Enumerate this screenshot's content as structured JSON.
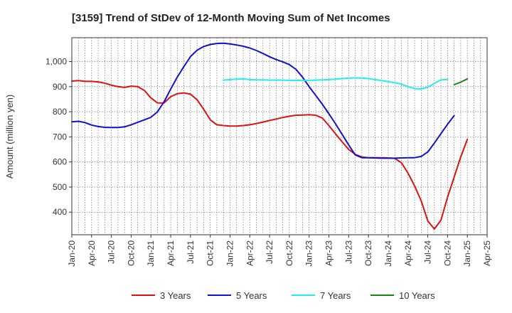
{
  "chart_data": {
    "type": "line",
    "title": "[3159]  Trend of StDev of 12-Month Moving Sum of Net Incomes",
    "xlabel": "",
    "ylabel": "Amount (million yen)",
    "ylim": [
      310,
      1095
    ],
    "yticks": [
      400,
      500,
      600,
      700,
      800,
      900,
      1000
    ],
    "ytick_labels": [
      "400",
      "500",
      "600",
      "700",
      "800",
      "900",
      "1,000"
    ],
    "x_start": "Jan-20",
    "x_end": "Apr-25",
    "xtick_labels": [
      "Jan-20",
      "Apr-20",
      "Jul-20",
      "Oct-20",
      "Jan-21",
      "Apr-21",
      "Jul-21",
      "Oct-21",
      "Jan-22",
      "Apr-22",
      "Jul-22",
      "Oct-22",
      "Jan-23",
      "Apr-23",
      "Jul-23",
      "Oct-23",
      "Jan-24",
      "Apr-24",
      "Jul-24",
      "Oct-24",
      "Jan-25",
      "Apr-25"
    ],
    "grid": true,
    "legend_position": "bottom",
    "series": [
      {
        "name": "3 Years",
        "color": "#dd1111",
        "start_month": 0,
        "values": [
          922,
          924,
          921,
          921,
          919,
          914,
          906,
          900,
          897,
          902,
          900,
          885,
          855,
          835,
          835,
          860,
          872,
          875,
          870,
          848,
          810,
          768,
          748,
          745,
          743,
          743,
          745,
          748,
          753,
          759,
          765,
          771,
          777,
          782,
          786,
          787,
          788,
          786,
          775,
          745,
          712,
          680,
          650,
          630,
          620,
          617,
          617,
          617,
          616,
          614,
          597,
          555,
          505,
          445,
          365,
          333,
          368,
          460,
          540,
          620,
          690
        ]
      },
      {
        "name": "5 Years",
        "color": "#1111cc",
        "start_month": 0,
        "values": [
          760,
          762,
          757,
          747,
          741,
          738,
          737,
          737,
          740,
          748,
          758,
          768,
          778,
          800,
          840,
          890,
          938,
          980,
          1020,
          1045,
          1060,
          1068,
          1072,
          1073,
          1070,
          1066,
          1061,
          1054,
          1044,
          1032,
          1019,
          1008,
          999,
          988,
          969,
          938,
          900,
          865,
          830,
          792,
          752,
          710,
          668,
          628,
          617,
          617,
          616,
          615,
          615,
          615,
          616,
          617,
          617,
          622,
          640,
          675,
          713,
          750,
          785
        ]
      },
      {
        "name": "7 Years",
        "color": "#22eeee",
        "start_month": 23,
        "values": [
          926,
          928,
          930,
          931,
          928,
          927,
          927,
          926,
          926,
          926,
          925,
          925,
          925,
          925,
          926,
          927,
          928,
          930,
          932,
          934,
          935,
          934,
          932,
          928,
          924,
          920,
          916,
          910,
          900,
          892,
          891,
          898,
          913,
          927,
          929
        ]
      },
      {
        "name": "10 Years",
        "color": "#118811",
        "start_month": 58,
        "values": [
          908,
          918,
          931
        ]
      }
    ]
  }
}
